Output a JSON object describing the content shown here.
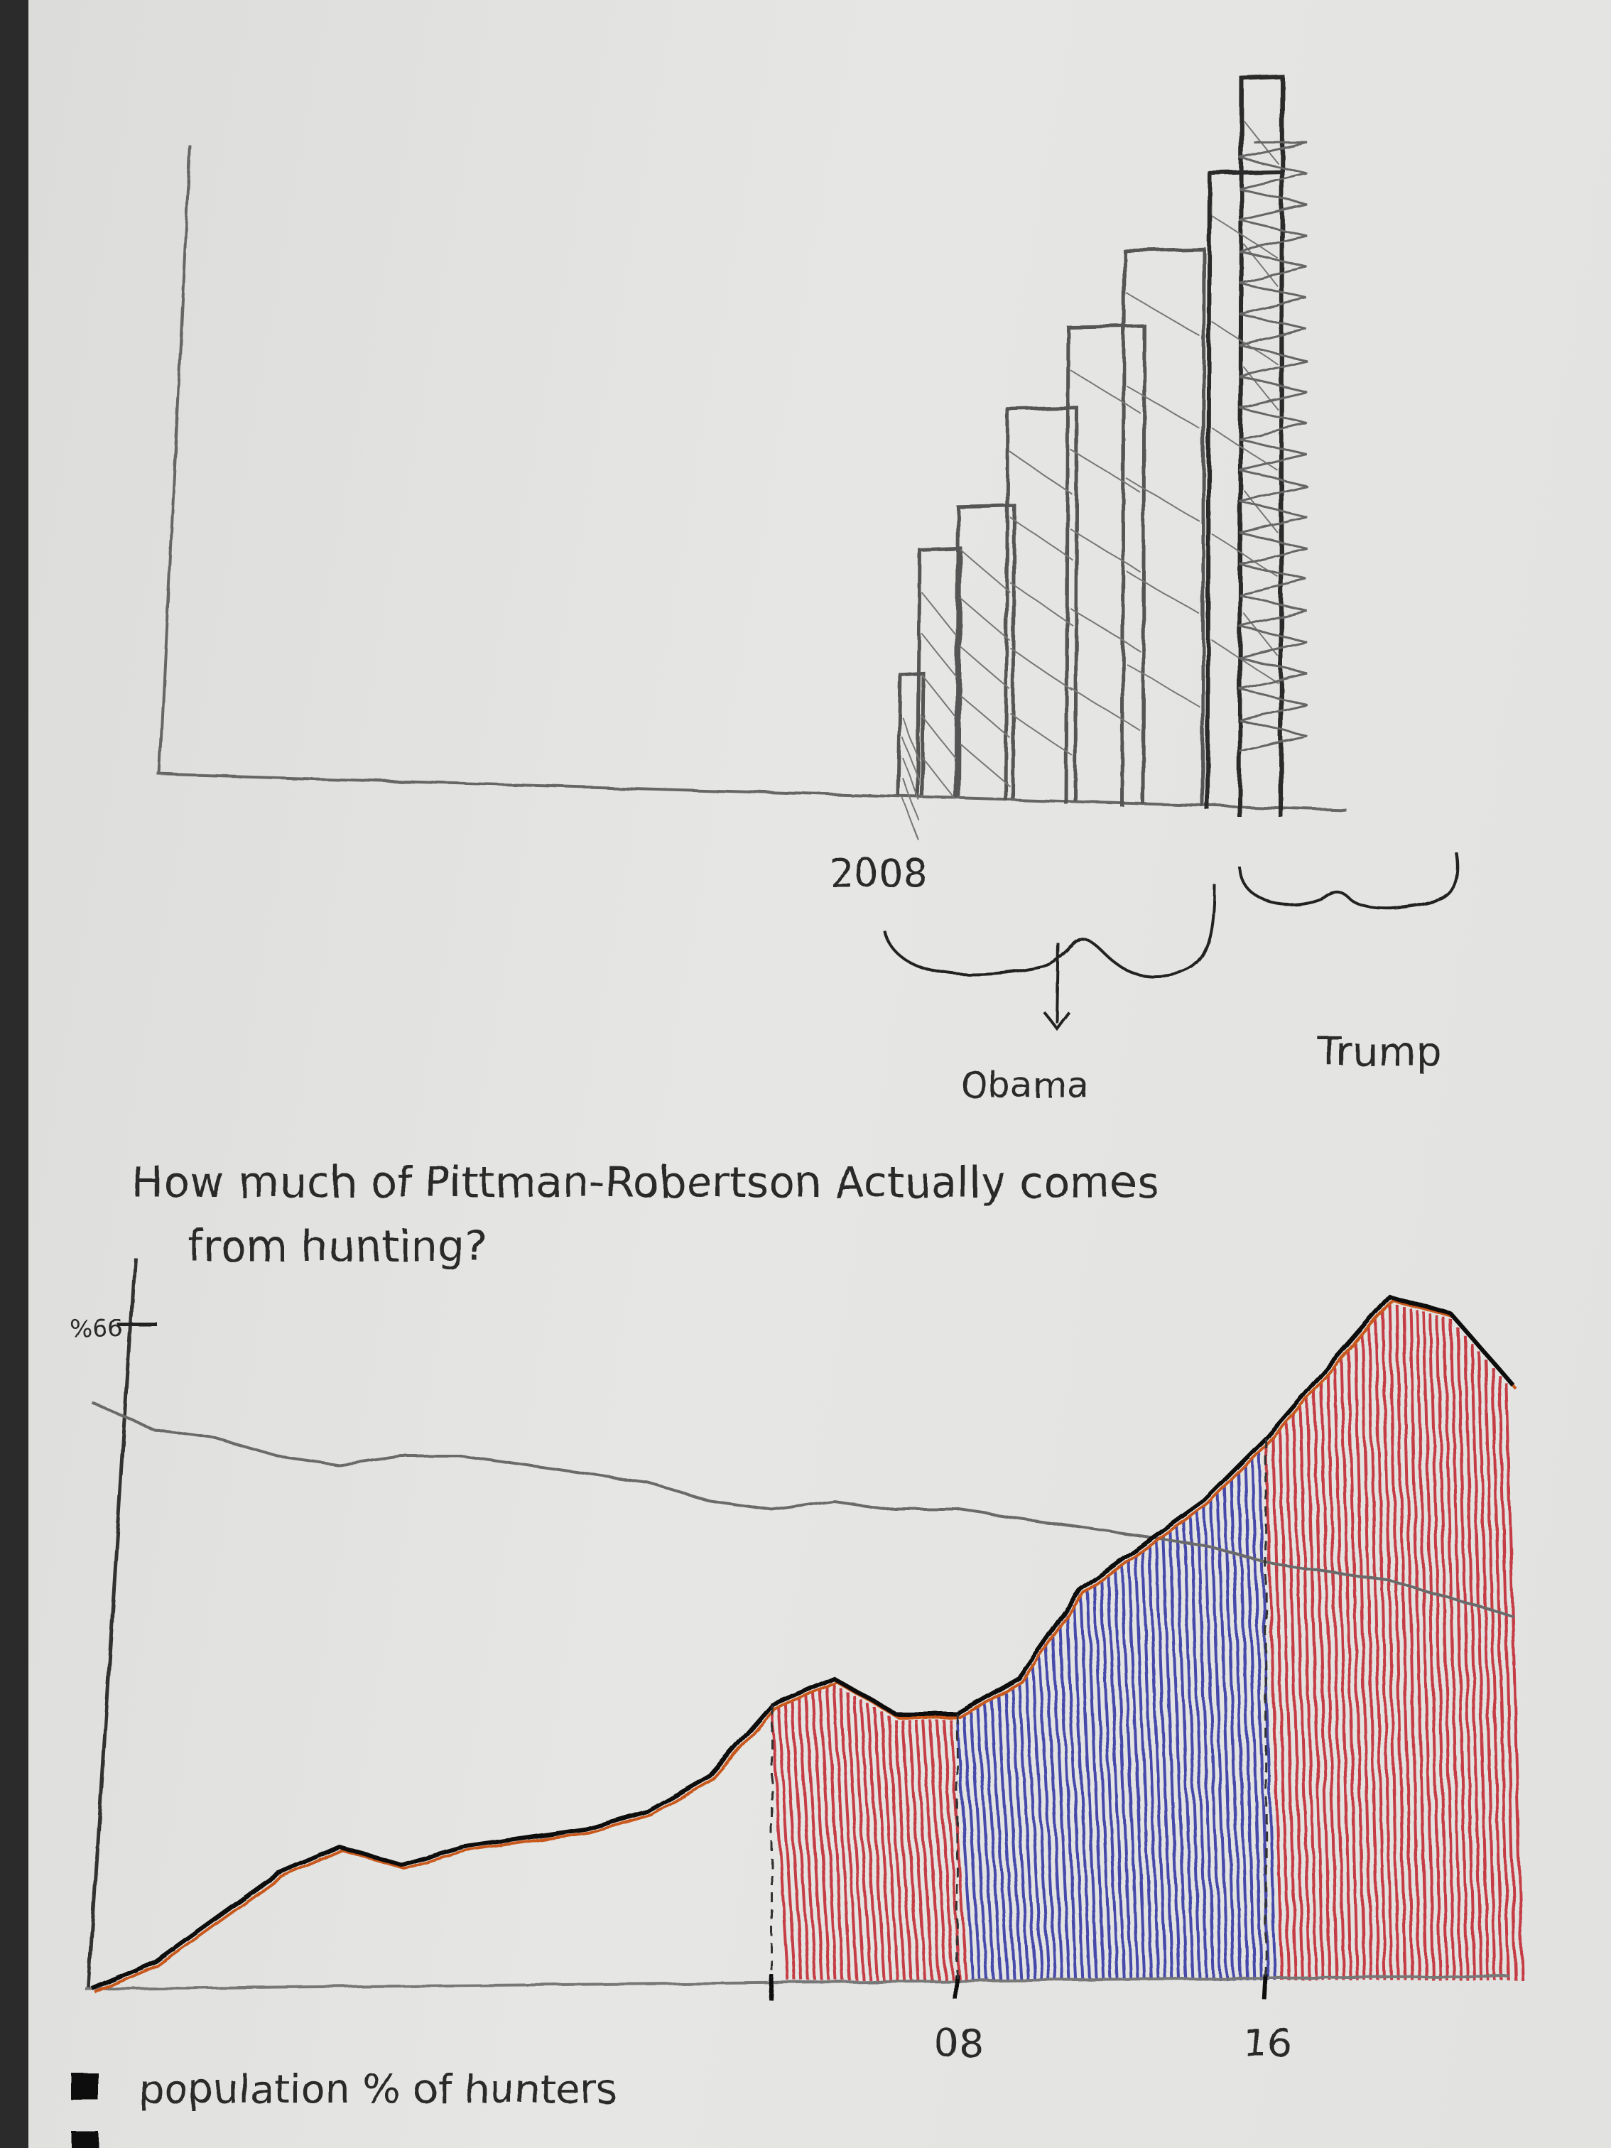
{
  "colors": {
    "paper": "#e3e3e1",
    "pencil": "#5a5a5a",
    "ink": "#161616",
    "orange": "#c8581f",
    "red": "#c0202a",
    "blue": "#2a2fa0"
  },
  "chart_data": [
    {
      "type": "bar",
      "title": "",
      "xlabel": "",
      "ylabel": "",
      "values": [
        22,
        45,
        53,
        71,
        86,
        100,
        114,
        131
      ],
      "annotations": [
        {
          "label": "2008"
        },
        {
          "label": "Obama"
        },
        {
          "label": "Trump"
        }
      ],
      "grid": false
    },
    {
      "type": "area",
      "title": "How much of Pittman-Robertson Actually comes from hunting?",
      "y_tick_label": "%66",
      "x_tick_labels": [
        "08",
        "16"
      ],
      "legend": [
        {
          "label": "population % of hunters",
          "color": "#161616"
        }
      ],
      "series": [
        {
          "name": "population % of hunters",
          "x": [
            0,
            1,
            2,
            3,
            4,
            5,
            6,
            7,
            8,
            9,
            10,
            11,
            12,
            13,
            14,
            15,
            16,
            17,
            18,
            19,
            20,
            21,
            22,
            23
          ],
          "values": [
            66,
            63,
            62,
            60,
            59,
            60,
            60,
            59,
            58,
            57,
            55,
            54,
            55,
            54,
            54,
            53,
            52,
            51,
            50,
            48,
            47,
            46,
            44,
            42
          ]
        },
        {
          "name": "",
          "x": [
            0,
            1,
            2,
            3,
            4,
            5,
            6,
            7,
            8,
            9,
            10,
            11,
            12,
            13,
            14,
            15,
            16,
            17,
            18,
            19,
            20,
            21,
            22,
            23
          ],
          "values": [
            0,
            3,
            8,
            13,
            16,
            14,
            16,
            17,
            18,
            20,
            24,
            32,
            35,
            31,
            31,
            35,
            45,
            50,
            55,
            62,
            70,
            78,
            76,
            68
          ],
          "shading": [
            {
              "from": 11,
              "to": 14,
              "color": "#c0202a"
            },
            {
              "from": 14,
              "to": 19,
              "color": "#2a2fa0"
            },
            {
              "from": 19,
              "to": 23,
              "color": "#c0202a"
            }
          ]
        }
      ],
      "ylim": [
        0,
        80
      ],
      "grid": false
    }
  ]
}
